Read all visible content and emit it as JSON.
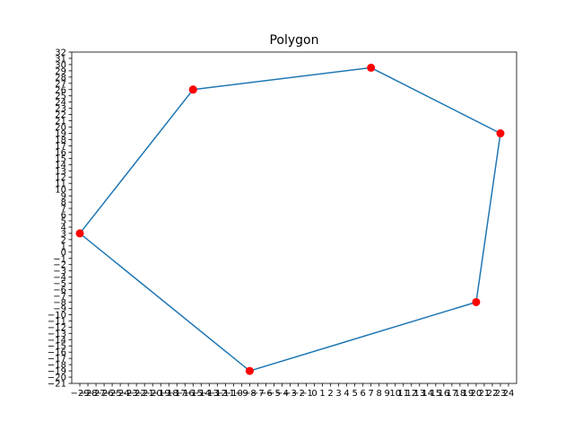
{
  "chart_data": {
    "type": "line",
    "title": "Polygon",
    "xlabel": "",
    "ylabel": "",
    "xlim": [
      -30,
      25
    ],
    "ylim": [
      -21,
      32
    ],
    "x_ticks": [
      -29,
      -28,
      -27,
      -26,
      -25,
      -24,
      -23,
      -22,
      -21,
      -20,
      -19,
      -18,
      -17,
      -16,
      -15,
      -14,
      -13,
      -12,
      -11,
      -10,
      -9,
      -8,
      -7,
      -6,
      -5,
      -4,
      -3,
      -2,
      -1,
      0,
      1,
      2,
      3,
      4,
      5,
      6,
      7,
      8,
      9,
      10,
      11,
      12,
      13,
      14,
      15,
      16,
      17,
      18,
      19,
      20,
      21,
      22,
      23,
      24
    ],
    "y_ticks": [
      -21,
      -20,
      -19,
      -18,
      -17,
      -16,
      -15,
      -14,
      -13,
      -12,
      -11,
      -10,
      -9,
      -8,
      -7,
      -6,
      -5,
      -4,
      -3,
      -2,
      -1,
      0,
      1,
      2,
      3,
      4,
      5,
      6,
      7,
      8,
      9,
      10,
      11,
      12,
      13,
      14,
      15,
      16,
      17,
      18,
      19,
      20,
      21,
      22,
      23,
      24,
      25,
      26,
      27,
      28,
      29,
      30,
      31,
      32
    ],
    "grid": false,
    "series": [
      {
        "x": [
          -15,
          7,
          23,
          20,
          -8,
          -29,
          -15
        ],
        "y": [
          26,
          29.5,
          19,
          -8,
          -19,
          3,
          26
        ],
        "line_color": "#1f77b4",
        "marker_color": "#ff0000"
      }
    ]
  }
}
